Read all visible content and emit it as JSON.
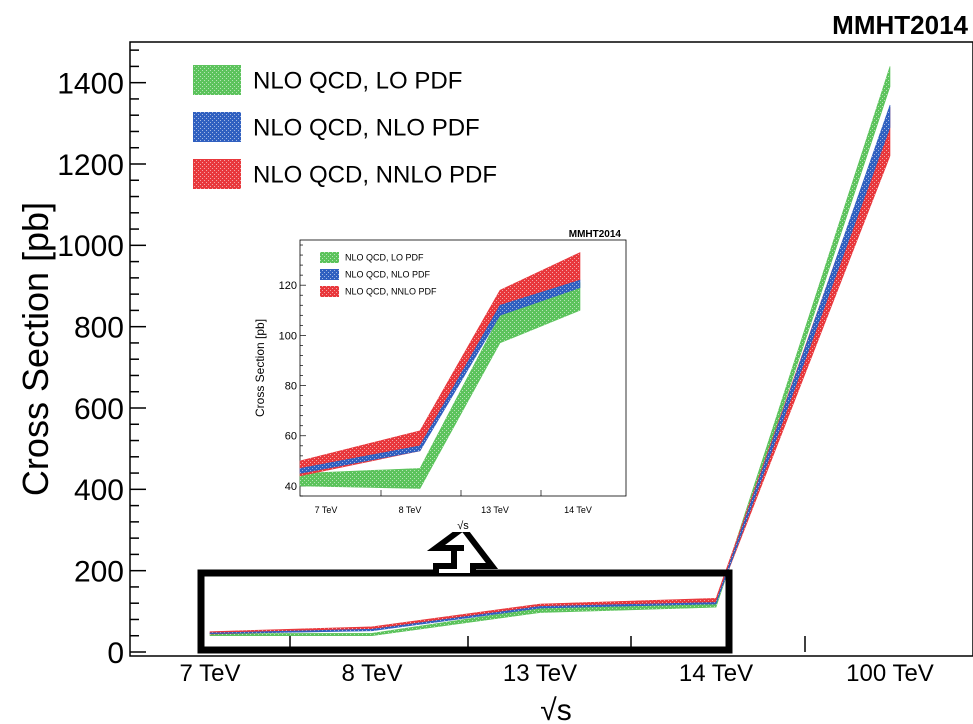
{
  "chart_data": [
    {
      "type": "area",
      "title": "MMHT2014",
      "xlabel": "√s",
      "ylabel": "Cross Section [pb]",
      "categories": [
        "7 TeV",
        "8 TeV",
        "13 TeV",
        "14 TeV",
        "100 TeV"
      ],
      "ylim": [
        0,
        1500
      ],
      "yticks": [
        0,
        200,
        400,
        600,
        800,
        1000,
        1200,
        1400
      ],
      "legend_position": "top-left",
      "series": [
        {
          "name": "NLO QCD, LO PDF",
          "color": "#5cc35c",
          "low": [
            40,
            40,
            97,
            110,
            1390
          ],
          "high": [
            45,
            46,
            108,
            120,
            1440
          ]
        },
        {
          "name": "NLO QCD, NLO PDF",
          "color": "#3060c0",
          "low": [
            45,
            52,
            108,
            118,
            1290
          ],
          "high": [
            47,
            56,
            112,
            122,
            1345
          ]
        },
        {
          "name": "NLO QCD, NNLO PDF",
          "color": "#e8383c",
          "low": [
            44,
            54,
            112,
            122,
            1220
          ],
          "high": [
            50,
            62,
            118,
            132,
            1340
          ]
        }
      ]
    },
    {
      "type": "area",
      "title": "MMHT2014",
      "xlabel": "√s",
      "ylabel": "Cross Section [pb]",
      "categories": [
        "7 TeV",
        "8 TeV",
        "13 TeV",
        "14 TeV"
      ],
      "ylim": [
        36,
        138
      ],
      "yticks": [
        40,
        60,
        80,
        100,
        120
      ],
      "legend_position": "top-left",
      "series": [
        {
          "name": "NLO QCD, LO PDF",
          "color": "#5cc35c",
          "low": [
            40,
            39,
            97,
            110
          ],
          "high": [
            45,
            47,
            108,
            121
          ]
        },
        {
          "name": "NLO QCD, NLO PDF",
          "color": "#3060c0",
          "low": [
            45,
            54,
            108,
            119
          ],
          "high": [
            47,
            56,
            112,
            122
          ]
        },
        {
          "name": "NLO QCD, NNLO PDF",
          "color": "#e8383c",
          "low": [
            44,
            54,
            112,
            122
          ],
          "high": [
            50,
            62,
            118,
            133
          ]
        }
      ]
    }
  ]
}
